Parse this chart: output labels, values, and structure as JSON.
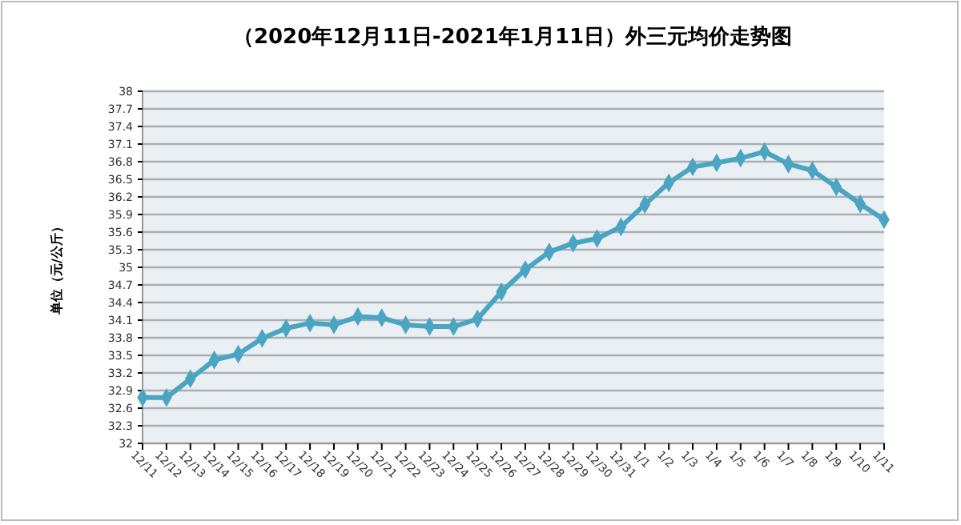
{
  "chart_data": {
    "type": "line",
    "title": "（2020年12月11日-2021年1月11日）外三元均价走势图",
    "ylabel": "单位（元/公斤）",
    "categories": [
      "12/11",
      "12/12",
      "12/13",
      "12/14",
      "12/15",
      "12/16",
      "12/17",
      "12/18",
      "12/19",
      "12/20",
      "12/21",
      "12/22",
      "12/23",
      "12/24",
      "12/25",
      "12/26",
      "12/27",
      "12/28",
      "12/29",
      "12/30",
      "12/31",
      "1/1",
      "1/2",
      "1/3",
      "1/4",
      "1/5",
      "1/6",
      "1/7",
      "1/8",
      "1/9",
      "1/10",
      "1/11"
    ],
    "series": [
      {
        "color": "#4aa5c2",
        "values": [
          32.78,
          32.78,
          33.1,
          33.42,
          33.52,
          33.79,
          33.96,
          34.05,
          34.02,
          34.16,
          34.14,
          34.02,
          33.99,
          33.99,
          34.12,
          34.58,
          34.96,
          35.26,
          35.41,
          35.49,
          35.69,
          36.07,
          36.44,
          36.71,
          36.78,
          36.86,
          36.97,
          36.76,
          36.65,
          36.37,
          36.08,
          35.81
        ]
      }
    ],
    "ylim": [
      32,
      38
    ],
    "yticks": [
      32,
      32.3,
      32.6,
      32.9,
      33.2,
      33.5,
      33.8,
      34.1,
      34.4,
      34.7,
      35,
      35.3,
      35.6,
      35.9,
      36.2,
      36.5,
      36.8,
      37.1,
      37.4,
      37.7,
      38
    ],
    "grid": "y",
    "marker": "diamond",
    "line_style": "solid"
  }
}
